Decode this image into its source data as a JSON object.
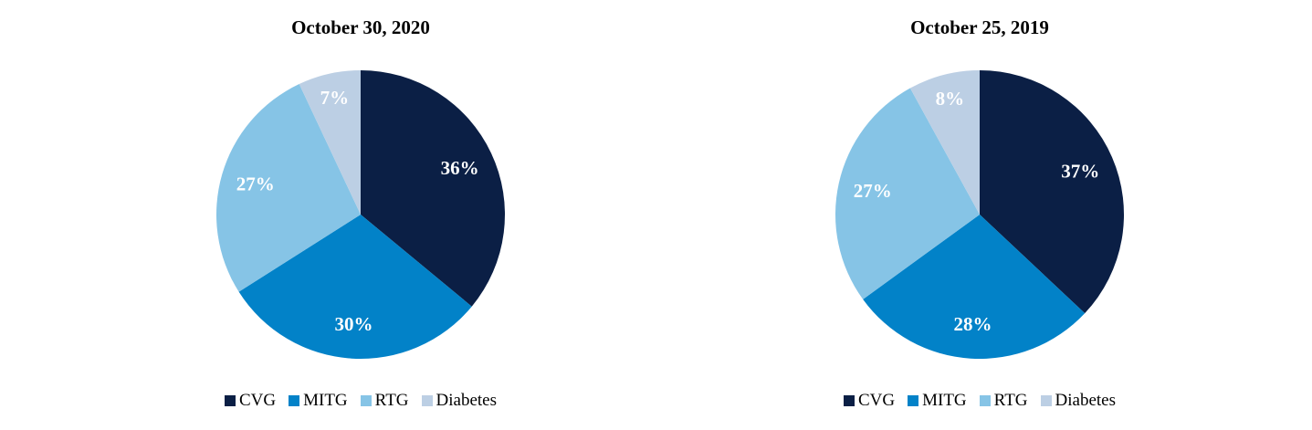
{
  "chart_data": [
    {
      "type": "pie",
      "title": "October 30, 2020",
      "categories": [
        "CVG",
        "MITG",
        "RTG",
        "Diabetes"
      ],
      "values": [
        36,
        30,
        27,
        7
      ],
      "labels": [
        "36%",
        "30%",
        "27%",
        "7%"
      ],
      "colors": [
        "#0b1f45",
        "#0282c8",
        "#86c4e6",
        "#bccfe4"
      ],
      "legend_position": "bottom"
    },
    {
      "type": "pie",
      "title": "October 25, 2019",
      "categories": [
        "CVG",
        "MITG",
        "RTG",
        "Diabetes"
      ],
      "values": [
        37,
        28,
        27,
        8
      ],
      "labels": [
        "37%",
        "28%",
        "27%",
        "8%"
      ],
      "colors": [
        "#0b1f45",
        "#0282c8",
        "#86c4e6",
        "#bccfe4"
      ],
      "legend_position": "bottom"
    }
  ]
}
